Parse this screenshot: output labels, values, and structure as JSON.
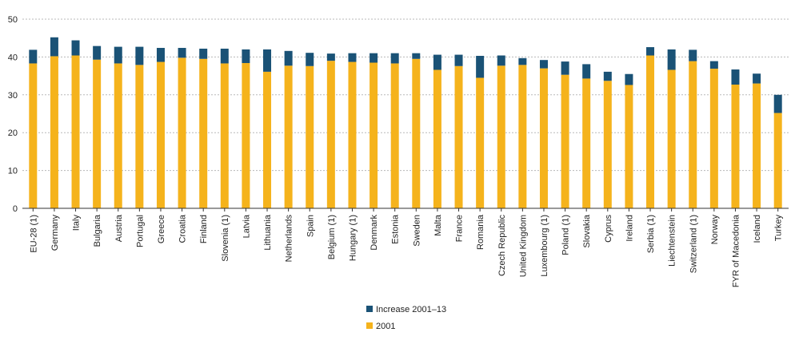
{
  "chart_data": {
    "type": "bar",
    "stacked": true,
    "title": "",
    "xlabel": "",
    "ylabel": "",
    "ylim": [
      0,
      50
    ],
    "yticks": [
      "0",
      "10",
      "20",
      "30",
      "40",
      "50"
    ],
    "grid": true,
    "legend_position": "bottom-center",
    "categories": [
      "EU-28 (1)",
      "Germany",
      "Italy",
      "Bulgaria",
      "Austria",
      "Portugal",
      "Greece",
      "Croatia",
      "Finland",
      "Slovenia (1)",
      "Latvia",
      "Lithuania",
      "Netherlands",
      "Spain",
      "Belgium (1)",
      "Hungary (1)",
      "Denmark",
      "Estonia",
      "Sweden",
      "Malta",
      "France",
      "Romania",
      "Czech Republic",
      "United Kingdom",
      "Luxembourg (1)",
      "Poland (1)",
      "Slovakia",
      "Cyprus",
      "Ireland",
      "Serbia (1)",
      "Liechtenstein",
      "Switzerland (1)",
      "Norway",
      "FYR of Macedonia",
      "Iceland",
      "Turkey"
    ],
    "series": [
      {
        "name": "2001",
        "color": "#F5B31C",
        "values": [
          38.3,
          40.2,
          40.4,
          39.3,
          38.3,
          37.9,
          38.7,
          39.8,
          39.5,
          38.3,
          38.4,
          36.1,
          37.7,
          37.6,
          39.0,
          38.7,
          38.5,
          38.3,
          39.5,
          36.6,
          37.6,
          34.5,
          37.7,
          37.9,
          37.0,
          35.3,
          34.3,
          33.7,
          32.6,
          40.4,
          36.6,
          38.9,
          36.9,
          32.7,
          33.0,
          25.2
        ]
      },
      {
        "name": "Increase 2001–13",
        "color": "#1A5276",
        "values": [
          3.6,
          5.0,
          4.0,
          3.6,
          4.4,
          4.8,
          3.7,
          2.6,
          2.7,
          3.9,
          3.6,
          5.9,
          3.9,
          3.5,
          1.9,
          2.3,
          2.5,
          2.7,
          1.5,
          4.0,
          3.0,
          5.8,
          2.7,
          1.8,
          2.2,
          3.5,
          3.8,
          2.4,
          2.9,
          2.2,
          5.4,
          3.0,
          2.0,
          4.0,
          2.6,
          4.8
        ]
      }
    ]
  },
  "legend": {
    "items": [
      {
        "label": "Increase 2001–13",
        "color": "#1A5276"
      },
      {
        "label": "2001",
        "color": "#F5B31C"
      }
    ]
  }
}
